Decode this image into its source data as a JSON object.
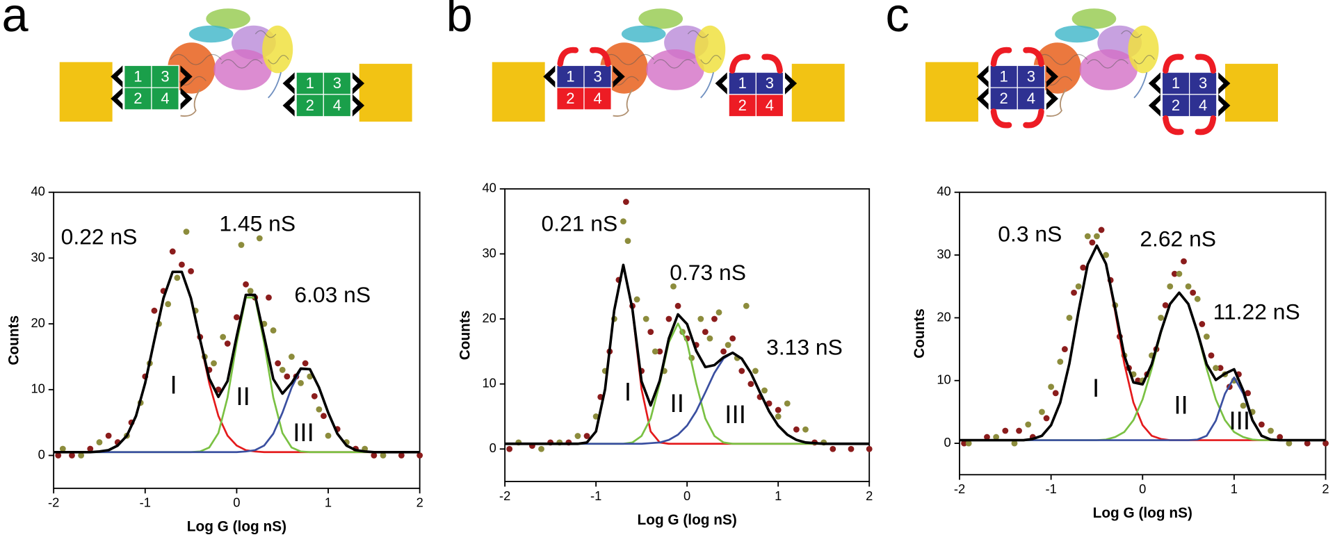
{
  "chart_data": [
    {
      "type": "scatter",
      "panel": "a",
      "xlabel": "Log G (log nS)",
      "ylabel": "Counts",
      "xlim": [
        -2,
        2
      ],
      "ylim": [
        -5,
        40
      ],
      "xticks": [
        -2,
        -1,
        0,
        1,
        2
      ],
      "yticks": [
        0,
        10,
        20,
        30,
        40
      ],
      "modules": [
        "1",
        "3",
        "2",
        "4"
      ],
      "annotations": [
        "0.22 nS",
        "1.45 nS",
        "6.03 nS",
        "I",
        "II",
        "III"
      ],
      "fit_x": [
        -2,
        -1.9,
        -1.8,
        -1.7,
        -1.6,
        -1.5,
        -1.4,
        -1.3,
        -1.2,
        -1.1,
        -1,
        -0.9,
        -0.8,
        -0.7,
        -0.6,
        -0.5,
        -0.4,
        -0.3,
        -0.2,
        -0.1,
        0,
        0.1,
        0.2,
        0.3,
        0.4,
        0.5,
        0.6,
        0.7,
        0.8,
        0.9,
        1,
        1.1,
        1.2,
        1.3,
        1.4,
        1.5,
        1.6,
        1.7,
        1.8,
        1.9,
        2
      ],
      "fits": [
        {
          "color": "#e41a1c",
          "values": [
            0.5,
            0.5,
            0.5,
            0.5,
            0.5,
            0.6,
            0.8,
            1.5,
            3.0,
            6.0,
            11.0,
            17.5,
            23.9,
            27.9,
            27.9,
            23.9,
            17.5,
            11.0,
            6.0,
            3.0,
            1.5,
            0.8,
            0.6,
            0.5,
            0.5,
            0.5,
            0.5,
            0.5,
            0.5,
            0.5,
            0.5,
            0.5,
            0.5,
            0.5,
            0.5,
            0.5,
            0.5,
            0.5,
            0.5,
            0.5,
            0.5
          ]
        },
        {
          "color": "#7ac143",
          "values": [
            0.5,
            0.5,
            0.5,
            0.5,
            0.5,
            0.5,
            0.5,
            0.5,
            0.5,
            0.5,
            0.5,
            0.5,
            0.5,
            0.5,
            0.5,
            0.5,
            0.6,
            1.2,
            3.4,
            8.8,
            17.1,
            24.0,
            24.0,
            17.1,
            8.8,
            3.4,
            1.2,
            0.6,
            0.5,
            0.5,
            0.5,
            0.5,
            0.5,
            0.5,
            0.5,
            0.5,
            0.5,
            0.5,
            0.5,
            0.5,
            0.5
          ]
        },
        {
          "color": "#3a4fa0",
          "values": [
            0.5,
            0.5,
            0.5,
            0.5,
            0.5,
            0.5,
            0.5,
            0.5,
            0.5,
            0.5,
            0.5,
            0.5,
            0.5,
            0.5,
            0.5,
            0.5,
            0.5,
            0.5,
            0.5,
            0.5,
            0.5,
            0.6,
            0.8,
            1.5,
            3.3,
            6.5,
            10.3,
            13.1,
            13.1,
            10.3,
            6.5,
            3.3,
            1.5,
            0.8,
            0.6,
            0.5,
            0.5,
            0.5,
            0.5,
            0.5,
            0.5
          ]
        },
        {
          "color": "#000000",
          "values": [
            0.5,
            0.5,
            0.5,
            0.5,
            0.5,
            0.6,
            0.8,
            1.5,
            3.0,
            6.0,
            11.0,
            17.5,
            23.9,
            27.9,
            27.9,
            23.9,
            17.6,
            11.7,
            8.9,
            11.3,
            18.1,
            24.4,
            24.4,
            18.1,
            11.6,
            9.4,
            11.0,
            13.2,
            13.1,
            10.3,
            6.5,
            3.3,
            1.5,
            0.8,
            0.6,
            0.5,
            0.5,
            0.5,
            0.5,
            0.5,
            0.5
          ]
        }
      ],
      "series": [
        {
          "color": "#8b1c1c",
          "x": [
            -1.95,
            -1.8,
            -1.6,
            -1.4,
            -1.3,
            -1.15,
            -1.0,
            -0.9,
            -0.8,
            -0.7,
            -0.6,
            -0.5,
            -0.4,
            -0.3,
            -0.2,
            -0.1,
            0.0,
            0.1,
            0.2,
            0.35,
            0.45,
            0.55,
            0.65,
            0.75,
            0.85,
            0.95,
            1.1,
            1.3,
            1.5,
            1.8,
            2.0
          ],
          "values": [
            0,
            0,
            1,
            3,
            2,
            5,
            12,
            22,
            25,
            31,
            29,
            28,
            18,
            13,
            10,
            17,
            21,
            26,
            24,
            24,
            14,
            12,
            12,
            14,
            9,
            6,
            4,
            1,
            0,
            0,
            0
          ]
        },
        {
          "color": "#8c8c3c",
          "x": [
            -1.9,
            -1.7,
            -1.5,
            -1.2,
            -1.05,
            -0.95,
            -0.85,
            -0.75,
            -0.65,
            -0.55,
            -0.45,
            -0.35,
            -0.25,
            -0.15,
            0.05,
            0.15,
            0.25,
            0.3,
            0.4,
            0.5,
            0.6,
            0.7,
            0.8,
            0.9,
            1.0,
            1.2,
            1.4,
            1.6
          ],
          "values": [
            1,
            0,
            2,
            3,
            8,
            14,
            20,
            23,
            27,
            34,
            22,
            15,
            14,
            18,
            32,
            25,
            33,
            20,
            19,
            13,
            15,
            11,
            12,
            7,
            3,
            2,
            1,
            0
          ]
        }
      ]
    },
    {
      "type": "scatter",
      "panel": "b",
      "xlabel": "Log G (log nS)",
      "ylabel": "Counts",
      "xlim": [
        -2,
        2
      ],
      "ylim": [
        -5,
        40
      ],
      "xticks": [
        -2,
        -1,
        0,
        1,
        2
      ],
      "yticks": [
        0,
        10,
        20,
        30,
        40
      ],
      "modules": [
        "1",
        "3",
        "2",
        "4"
      ],
      "annotations": [
        "0.21 nS",
        "0.73 nS",
        "3.13 nS",
        "I",
        "II",
        "III"
      ],
      "fit_x": [
        -2,
        -1.9,
        -1.8,
        -1.7,
        -1.6,
        -1.5,
        -1.4,
        -1.3,
        -1.2,
        -1.1,
        -1,
        -0.9,
        -0.8,
        -0.7,
        -0.6,
        -0.5,
        -0.4,
        -0.3,
        -0.2,
        -0.1,
        0,
        0.1,
        0.2,
        0.3,
        0.4,
        0.5,
        0.6,
        0.7,
        0.8,
        0.9,
        1,
        1.1,
        1.2,
        1.3,
        1.4,
        1.5,
        1.6,
        1.7,
        1.8,
        1.9,
        2
      ],
      "fits": [
        {
          "color": "#e41a1c",
          "values": [
            0.8,
            0.8,
            0.8,
            0.8,
            0.8,
            0.8,
            0.8,
            0.8,
            0.8,
            1.0,
            2.7,
            9.2,
            21.3,
            28.3,
            21.3,
            9.2,
            2.7,
            1.0,
            0.8,
            0.8,
            0.8,
            0.8,
            0.8,
            0.8,
            0.8,
            0.8,
            0.8,
            0.8,
            0.8,
            0.8,
            0.8,
            0.8,
            0.8,
            0.8,
            0.8,
            0.8,
            0.8,
            0.8,
            0.8,
            0.8,
            0.8
          ]
        },
        {
          "color": "#7ac143",
          "values": [
            0.8,
            0.8,
            0.8,
            0.8,
            0.8,
            0.8,
            0.8,
            0.8,
            0.8,
            0.8,
            0.8,
            0.8,
            0.8,
            0.8,
            1.0,
            2.0,
            4.7,
            10.1,
            16.4,
            19.3,
            16.4,
            10.1,
            4.7,
            2.0,
            1.0,
            0.8,
            0.8,
            0.8,
            0.8,
            0.8,
            0.8,
            0.8,
            0.8,
            0.8,
            0.8,
            0.8,
            0.8,
            0.8,
            0.8,
            0.8,
            0.8
          ]
        },
        {
          "color": "#3a4fa0",
          "values": [
            0.8,
            0.8,
            0.8,
            0.8,
            0.8,
            0.8,
            0.8,
            0.8,
            0.8,
            0.8,
            0.8,
            0.8,
            0.8,
            0.8,
            0.8,
            0.8,
            0.9,
            1.0,
            1.4,
            2.2,
            3.6,
            5.8,
            8.7,
            11.7,
            13.9,
            14.8,
            13.9,
            11.7,
            8.7,
            5.8,
            3.6,
            2.2,
            1.4,
            1.0,
            0.9,
            0.8,
            0.8,
            0.8,
            0.8,
            0.8,
            0.8
          ]
        },
        {
          "color": "#000000",
          "values": [
            0.8,
            0.8,
            0.8,
            0.8,
            0.8,
            0.8,
            0.8,
            0.8,
            0.8,
            1.0,
            2.7,
            9.2,
            21.3,
            28.3,
            21.5,
            10.4,
            6.7,
            10.5,
            17.0,
            20.7,
            19.2,
            15.1,
            12.6,
            12.9,
            14.1,
            14.8,
            13.9,
            11.7,
            8.7,
            5.8,
            3.6,
            2.2,
            1.4,
            1.0,
            0.9,
            0.8,
            0.8,
            0.8,
            0.8,
            0.8,
            0.8
          ]
        }
      ],
      "series": [
        {
          "color": "#8b1c1c",
          "x": [
            -1.95,
            -1.7,
            -1.5,
            -1.3,
            -1.1,
            -0.95,
            -0.85,
            -0.75,
            -0.67,
            -0.6,
            -0.5,
            -0.4,
            -0.3,
            -0.2,
            -0.1,
            0.0,
            0.1,
            0.2,
            0.3,
            0.4,
            0.5,
            0.6,
            0.7,
            0.8,
            0.9,
            1.0,
            1.2,
            1.4,
            1.6,
            1.8,
            2.0
          ],
          "values": [
            0,
            0.5,
            1,
            1,
            2,
            8,
            15,
            26,
            38,
            22,
            12,
            18,
            15,
            20,
            22,
            17,
            16,
            18,
            20,
            15,
            17,
            12,
            10,
            8,
            7,
            6,
            3,
            1,
            0,
            0,
            0
          ]
        },
        {
          "color": "#8c8c3c",
          "x": [
            -1.85,
            -1.6,
            -1.4,
            -1.2,
            -1.0,
            -0.9,
            -0.8,
            -0.7,
            -0.65,
            -0.55,
            -0.45,
            -0.35,
            -0.25,
            -0.15,
            -0.05,
            0.05,
            0.15,
            0.25,
            0.35,
            0.45,
            0.55,
            0.65,
            0.75,
            0.85,
            1.0,
            1.1,
            1.3,
            1.5
          ],
          "values": [
            1,
            0,
            1,
            2,
            5,
            12,
            20,
            35,
            32,
            23,
            20,
            15,
            12,
            25,
            18,
            14,
            20,
            17,
            21,
            16,
            14,
            22,
            12,
            9,
            5,
            7,
            3,
            1
          ]
        }
      ]
    },
    {
      "type": "scatter",
      "panel": "c",
      "xlabel": "Log G (log nS)",
      "ylabel": "Counts",
      "xlim": [
        -2,
        2
      ],
      "ylim": [
        -5,
        40
      ],
      "xticks": [
        -2,
        -1,
        0,
        1,
        2
      ],
      "yticks": [
        0,
        10,
        20,
        30,
        40
      ],
      "modules": [
        "1",
        "3",
        "2",
        "4"
      ],
      "annotations": [
        "0.3 nS",
        "2.62 nS",
        "11.22 nS",
        "I",
        "II",
        "III"
      ],
      "fit_x": [
        -2,
        -1.9,
        -1.8,
        -1.7,
        -1.6,
        -1.5,
        -1.4,
        -1.3,
        -1.2,
        -1.1,
        -1,
        -0.9,
        -0.8,
        -0.7,
        -0.6,
        -0.5,
        -0.4,
        -0.3,
        -0.2,
        -0.1,
        0,
        0.1,
        0.2,
        0.3,
        0.4,
        0.5,
        0.6,
        0.7,
        0.8,
        0.9,
        1,
        1.1,
        1.2,
        1.3,
        1.4,
        1.5,
        1.6,
        1.7,
        1.8,
        1.9,
        2
      ],
      "fits": [
        {
          "color": "#e41a1c",
          "values": [
            0.5,
            0.5,
            0.5,
            0.5,
            0.5,
            0.5,
            0.5,
            0.5,
            0.7,
            1.2,
            2.9,
            6.5,
            12.7,
            21.0,
            28.5,
            31.5,
            28.5,
            21.0,
            12.7,
            6.5,
            2.9,
            1.2,
            0.7,
            0.5,
            0.5,
            0.5,
            0.5,
            0.5,
            0.5,
            0.5,
            0.5,
            0.5,
            0.5,
            0.5,
            0.5,
            0.5,
            0.5,
            0.5,
            0.5,
            0.5,
            0.5
          ]
        },
        {
          "color": "#7ac143",
          "values": [
            0.5,
            0.5,
            0.5,
            0.5,
            0.5,
            0.5,
            0.5,
            0.5,
            0.5,
            0.5,
            0.5,
            0.5,
            0.5,
            0.5,
            0.5,
            0.5,
            0.6,
            1.0,
            1.8,
            3.7,
            7.0,
            11.9,
            17.6,
            22.2,
            24.0,
            22.2,
            17.6,
            11.9,
            7.0,
            3.7,
            1.8,
            1.0,
            0.6,
            0.5,
            0.5,
            0.5,
            0.5,
            0.5,
            0.5,
            0.5,
            0.5
          ]
        },
        {
          "color": "#3a4fa0",
          "values": [
            0.5,
            0.5,
            0.5,
            0.5,
            0.5,
            0.5,
            0.5,
            0.5,
            0.5,
            0.5,
            0.5,
            0.5,
            0.5,
            0.5,
            0.5,
            0.5,
            0.5,
            0.5,
            0.5,
            0.5,
            0.5,
            0.5,
            0.5,
            0.5,
            0.5,
            0.5,
            0.6,
            1.2,
            3.6,
            7.9,
            10.5,
            7.9,
            3.6,
            1.2,
            0.6,
            0.5,
            0.5,
            0.5,
            0.5,
            0.5,
            0.5
          ]
        },
        {
          "color": "#000000",
          "values": [
            0.5,
            0.5,
            0.5,
            0.5,
            0.5,
            0.5,
            0.5,
            0.5,
            0.7,
            1.2,
            2.9,
            6.5,
            12.7,
            21.0,
            28.5,
            31.5,
            28.6,
            21.5,
            14.0,
            9.7,
            9.4,
            12.6,
            17.8,
            22.2,
            24.0,
            22.2,
            17.7,
            12.6,
            10.1,
            11.1,
            11.8,
            8.4,
            3.7,
            1.2,
            0.6,
            0.5,
            0.5,
            0.5,
            0.5,
            0.5,
            0.5
          ]
        }
      ],
      "series": [
        {
          "color": "#8b1c1c",
          "x": [
            -1.95,
            -1.7,
            -1.5,
            -1.35,
            -1.2,
            -1.05,
            -0.95,
            -0.85,
            -0.75,
            -0.65,
            -0.55,
            -0.45,
            -0.35,
            -0.25,
            -0.15,
            -0.05,
            0.05,
            0.15,
            0.25,
            0.35,
            0.45,
            0.55,
            0.65,
            0.75,
            0.85,
            0.95,
            1.05,
            1.15,
            1.3,
            1.5,
            1.8,
            2.0
          ],
          "values": [
            0,
            1,
            2,
            2,
            1,
            4,
            8,
            15,
            24,
            28,
            32,
            34,
            26,
            17,
            12,
            10,
            11,
            15,
            22,
            27,
            29,
            24,
            19,
            14,
            12,
            9,
            11,
            8,
            3,
            1,
            0,
            0
          ]
        },
        {
          "color": "#8c8c3c",
          "x": [
            -1.9,
            -1.6,
            -1.4,
            -1.25,
            -1.1,
            -1.0,
            -0.9,
            -0.8,
            -0.7,
            -0.6,
            -0.5,
            -0.4,
            -0.3,
            -0.2,
            -0.1,
            0.0,
            0.1,
            0.2,
            0.3,
            0.4,
            0.5,
            0.6,
            0.7,
            0.8,
            0.9,
            1.0,
            1.1,
            1.2,
            1.4,
            1.6
          ],
          "values": [
            0,
            1,
            0,
            3,
            5,
            9,
            13,
            20,
            25,
            33,
            33,
            30,
            22,
            14,
            11,
            10,
            14,
            20,
            25,
            27,
            25,
            23,
            17,
            12,
            11,
            10,
            6,
            5,
            2,
            0
          ]
        }
      ]
    }
  ]
}
